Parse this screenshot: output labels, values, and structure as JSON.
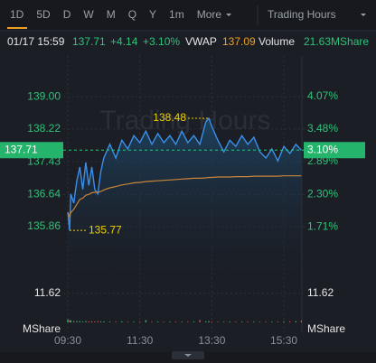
{
  "header": {
    "tabs": [
      "1D",
      "5D",
      "D",
      "W",
      "M",
      "Q",
      "Y",
      "1m",
      "More"
    ],
    "session": "Trading Hours"
  },
  "quote": {
    "datetime": "01/17 15:59",
    "change": "+4.14",
    "change_pct": "+3.10%",
    "vwap_label": "VWAP",
    "vwap": "137.09",
    "volume_label": "Volume",
    "volume": "21.63MShare"
  },
  "chart_data": {
    "type": "line",
    "watermark": "Trading Hours",
    "x": [
      "09:30",
      "09:33",
      "09:35",
      "09:40",
      "09:45",
      "09:50",
      "09:55",
      "10:00",
      "10:05",
      "10:10",
      "10:15",
      "10:20",
      "10:25",
      "10:30",
      "10:40",
      "10:50",
      "11:00",
      "11:10",
      "11:20",
      "11:30",
      "11:40",
      "11:50",
      "12:00",
      "12:10",
      "12:20",
      "12:30",
      "12:40",
      "12:50",
      "13:00",
      "13:10",
      "13:20",
      "13:25",
      "13:30",
      "13:40",
      "13:50",
      "14:00",
      "14:10",
      "14:20",
      "14:30",
      "14:40",
      "14:50",
      "15:00",
      "15:10",
      "15:20",
      "15:30",
      "15:40",
      "15:50",
      "15:59"
    ],
    "xlim": [
      "09:30",
      "16:00"
    ],
    "xticks": [
      "09:30",
      "11:30",
      "13:30",
      "15:30"
    ],
    "series": [
      {
        "color": "#3b8fe8",
        "values": [
          136.21,
          135.77,
          136.65,
          136.43,
          136.97,
          137.3,
          136.76,
          137.41,
          136.86,
          137.3,
          136.76,
          136.65,
          137.19,
          137.52,
          137.85,
          137.52,
          137.95,
          137.74,
          138.06,
          137.89,
          138.17,
          137.85,
          138.11,
          137.89,
          138.06,
          137.85,
          138.17,
          137.89,
          138.06,
          137.85,
          138.39,
          138.48,
          138.28,
          137.95,
          137.67,
          137.95,
          137.8,
          138.06,
          137.85,
          138.02,
          137.67,
          137.52,
          137.74,
          137.45,
          137.8,
          137.63,
          137.85,
          137.71
        ]
      },
      {
        "color": "#c8843a",
        "values": [
          136.21,
          136.1,
          136.2,
          136.28,
          136.4,
          136.52,
          136.55,
          136.62,
          136.64,
          136.68,
          136.69,
          136.69,
          136.71,
          136.75,
          136.8,
          136.83,
          136.87,
          136.89,
          136.92,
          136.93,
          136.95,
          136.96,
          136.97,
          136.98,
          136.99,
          137.0,
          137.01,
          137.02,
          137.03,
          137.03,
          137.04,
          137.05,
          137.05,
          137.06,
          137.06,
          137.06,
          137.07,
          137.07,
          137.07,
          137.08,
          137.08,
          137.08,
          137.08,
          137.08,
          137.09,
          137.09,
          137.09,
          137.09
        ]
      }
    ],
    "ylim": [
      135.49,
      139.33
    ],
    "yticks": [
      {
        "value": 139,
        "label": "139.00"
      },
      138.22,
      137.43,
      136.64,
      135.86
    ],
    "y2lim": [
      1.437,
      4.312
    ],
    "y2ticks": [
      {
        "value": 4.07,
        "label": "4.07%"
      },
      {
        "value": 3.48,
        "label": "3.48%"
      },
      {
        "value": 2.89,
        "label": "2.89%"
      },
      {
        "value": 2.3,
        "label": "2.30%"
      },
      {
        "value": 1.71,
        "label": "1.71%"
      }
    ],
    "last": 137.71,
    "last_pct": {
      "value": 3.1,
      "label": "3.10%"
    },
    "up_color": "#2fc27a",
    "down_color": "#e5484d",
    "volume": {
      "unit": "MShare",
      "ylim": [
        0,
        11.62
      ],
      "yticks": [
        11.62
      ],
      "values": [
        1.2,
        0.9,
        0.8,
        0.6,
        0.5,
        0.5,
        0.4,
        0.5,
        0.4,
        0.4,
        0.4,
        0.5,
        0.4,
        0.4,
        0.3,
        0.3,
        0.4,
        0.3,
        0.3,
        0.3,
        0.9,
        0.3,
        0.3,
        0.3,
        0.3,
        0.3,
        0.3,
        0.3,
        0.3,
        1.0,
        0.4,
        0.5,
        0.3,
        0.3,
        0.3,
        0.3,
        0.3,
        0.3,
        0.3,
        0.3,
        0.3,
        0.3,
        0.3,
        0.3,
        0.4,
        0.4,
        0.5,
        0.8
      ]
    }
  }
}
